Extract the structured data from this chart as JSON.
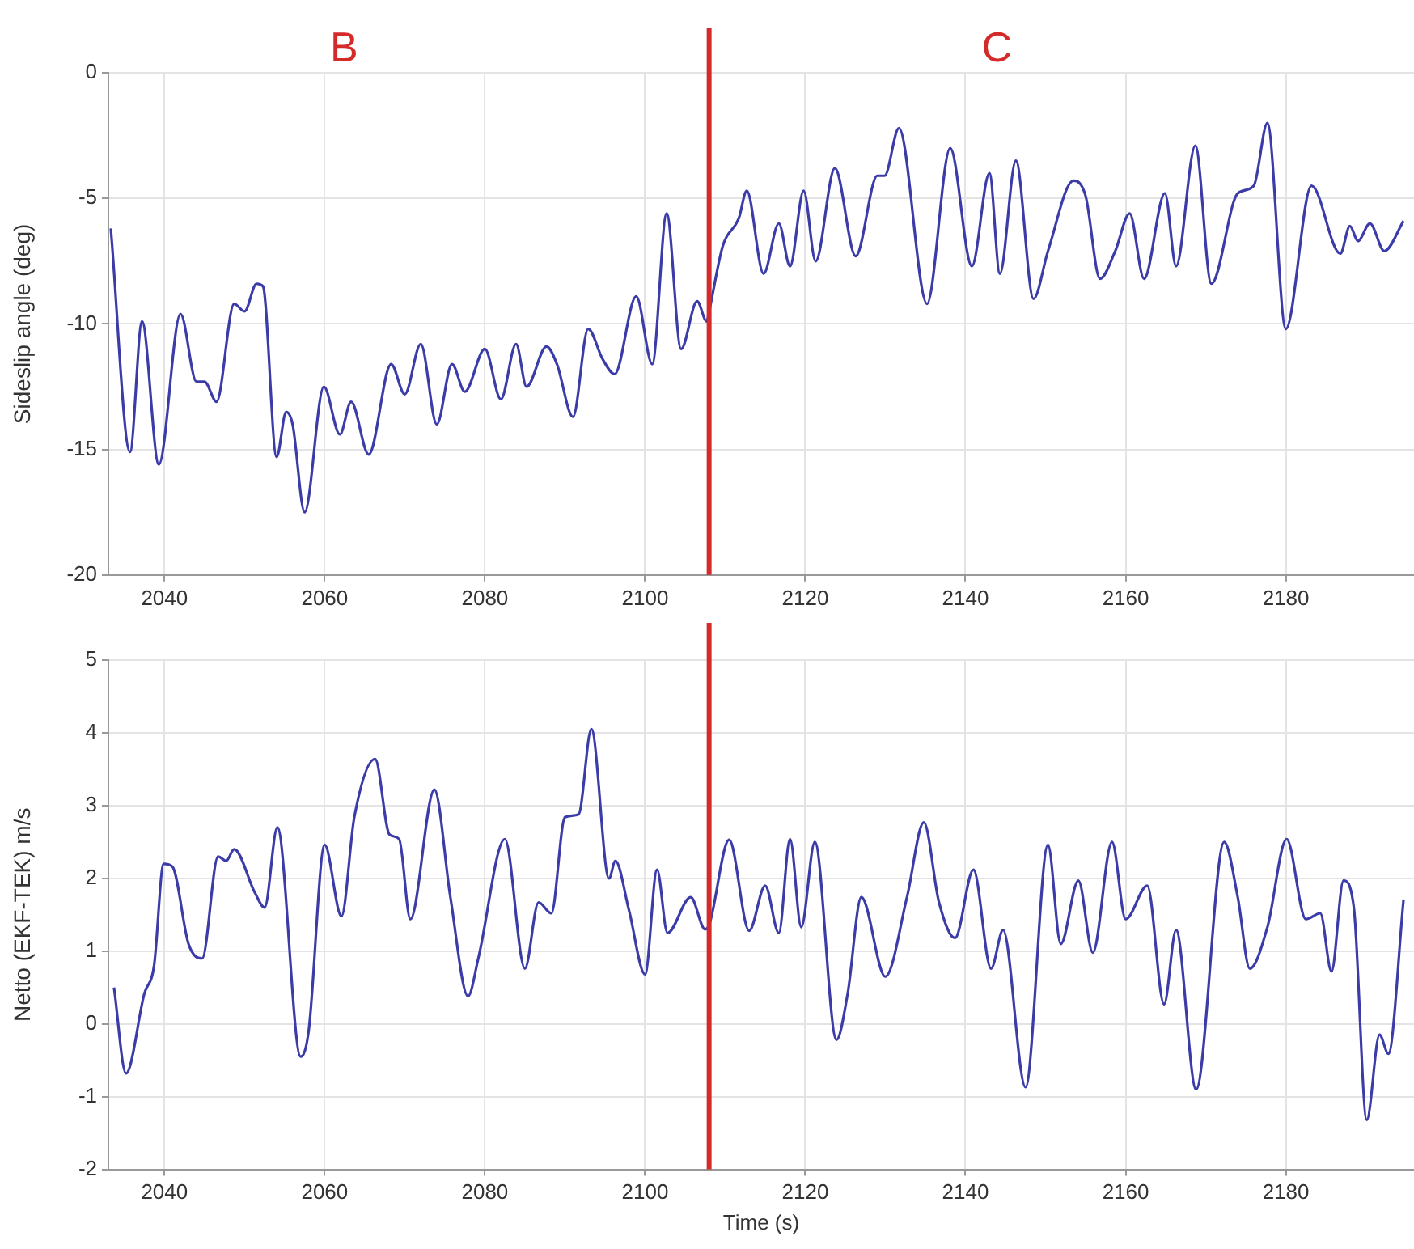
{
  "chart_data": [
    {
      "type": "line",
      "ylabel": "Sideslip angle (deg)",
      "annotations": [
        "B",
        "C"
      ],
      "x": [
        2033.3,
        2035.7,
        2037.2,
        2039.3,
        2042,
        2044,
        2045,
        2046.5,
        2048.7,
        2050,
        2051.5,
        2052.3,
        2054,
        2055.2,
        2056,
        2057.5,
        2059.9,
        2061.9,
        2063.3,
        2065.5,
        2068.3,
        2070,
        2072,
        2074,
        2075.9,
        2077.5,
        2080,
        2082,
        2083.9,
        2085.2,
        2087.7,
        2089,
        2091,
        2092.9,
        2094.7,
        2096.2,
        2098.9,
        2100.9,
        2102.7,
        2104.5,
        2106.5,
        2107.7,
        2108,
        2109.7,
        2111.7,
        2112.7,
        2114.8,
        2116.7,
        2118.1,
        2119.8,
        2121.3,
        2123.7,
        2126.3,
        2129,
        2129.9,
        2131.7,
        2135.2,
        2138.1,
        2140.8,
        2143,
        2144.3,
        2146.3,
        2148.5,
        2150.3,
        2153.5,
        2155,
        2156.8,
        2158.7,
        2160.5,
        2162.3,
        2164.9,
        2166.3,
        2168.7,
        2170.7,
        2174,
        2176,
        2177.7,
        2180,
        2183.2,
        2186.8,
        2188,
        2189,
        2190.5,
        2192.3,
        2194.7
      ],
      "series": [
        {
          "color": "#3c3ca8",
          "values": [
            -6.2,
            -15.1,
            -9.9,
            -15.6,
            -9.6,
            -12.3,
            -12.3,
            -13.1,
            -9.2,
            -9.5,
            -8.4,
            -8.5,
            -15.3,
            -13.5,
            -14,
            -17.5,
            -12.5,
            -14.4,
            -13.1,
            -15.2,
            -11.6,
            -12.8,
            -10.8,
            -14,
            -11.6,
            -12.7,
            -11,
            -13,
            -10.8,
            -12.5,
            -10.9,
            -11.6,
            -13.7,
            -10.2,
            -11.4,
            -12,
            -8.9,
            -11.6,
            -5.6,
            -11,
            -9.1,
            -9.9,
            -9.5,
            -6.9,
            -5.8,
            -4.7,
            -8,
            -6,
            -7.7,
            -4.7,
            -7.5,
            -3.8,
            -7.3,
            -4.1,
            -4.1,
            -2.2,
            -9.2,
            -3,
            -7.7,
            -4,
            -8,
            -3.5,
            -9,
            -7.1,
            -4.3,
            -4.9,
            -8.2,
            -7.1,
            -5.6,
            -8.2,
            -4.8,
            -7.7,
            -2.9,
            -8.4,
            -4.8,
            -4.5,
            -2,
            -10.2,
            -4.5,
            -7.2,
            -6.1,
            -6.7,
            -6,
            -7.1,
            -5.9
          ]
        }
      ],
      "xlim": [
        2033,
        2196
      ],
      "xticks": [
        2040,
        2060,
        2080,
        2100,
        2120,
        2140,
        2160,
        2180
      ],
      "ylim": [
        -20,
        0
      ],
      "yticks": [
        -20,
        -15,
        -10,
        -5,
        0
      ],
      "grid": true,
      "ref_lines": [
        {
          "axis": "x",
          "value": 2108,
          "color": "#d42a2a"
        }
      ]
    },
    {
      "type": "line",
      "xlabel": "Time (s)",
      "ylabel": "Netto (EKF-TEK) m/s",
      "x": [
        2033.7,
        2035.2,
        2037.5,
        2038.7,
        2039.9,
        2041,
        2043,
        2044.7,
        2046.7,
        2047.7,
        2048.7,
        2051.3,
        2052.5,
        2054.1,
        2057,
        2058,
        2060,
        2062.1,
        2063.7,
        2066.3,
        2068.1,
        2069.3,
        2070.7,
        2073.7,
        2075.7,
        2077.9,
        2079.2,
        2082.5,
        2085,
        2086.7,
        2088.3,
        2090,
        2091.7,
        2093.3,
        2095.5,
        2096.3,
        2098,
        2100,
        2101.5,
        2102.8,
        2105.7,
        2107.5,
        2108,
        2110.5,
        2113,
        2115,
        2116.7,
        2118.1,
        2119.5,
        2121.2,
        2123.9,
        2125.3,
        2127,
        2130,
        2132.7,
        2134.8,
        2136.7,
        2138.7,
        2141,
        2143.2,
        2144.7,
        2147.5,
        2150.3,
        2151.9,
        2154.1,
        2155.9,
        2158.3,
        2160,
        2162.7,
        2164.8,
        2166.3,
        2168.8,
        2172.3,
        2174,
        2175.5,
        2177.7,
        2180.1,
        2182.5,
        2184.3,
        2185.7,
        2187.2,
        2188.5,
        2190.1,
        2191.7,
        2192.8,
        2194.7
      ],
      "series": [
        {
          "color": "#3c3ca8",
          "values": [
            0.5,
            -0.68,
            0.42,
            0.8,
            2.2,
            2.16,
            1.1,
            0.9,
            2.3,
            2.24,
            2.4,
            1.8,
            1.6,
            2.7,
            -0.45,
            -0.1,
            2.46,
            1.48,
            2.84,
            3.64,
            2.6,
            2.54,
            1.44,
            3.22,
            1.74,
            0.38,
            0.91,
            2.54,
            0.76,
            1.67,
            1.52,
            2.84,
            2.88,
            4.05,
            2,
            2.24,
            1.56,
            0.68,
            2.12,
            1.25,
            1.74,
            1.3,
            1.36,
            2.53,
            1.28,
            1.9,
            1.25,
            2.54,
            1.33,
            2.5,
            -0.22,
            0.42,
            1.74,
            0.65,
            1.74,
            2.77,
            1.67,
            1.18,
            2.12,
            0.76,
            1.29,
            -0.87,
            2.46,
            1.1,
            1.97,
            0.98,
            2.5,
            1.44,
            1.9,
            0.27,
            1.29,
            -0.9,
            2.5,
            1.74,
            0.76,
            1.33,
            2.54,
            1.44,
            1.52,
            0.72,
            1.97,
            1.59,
            -1.32,
            -0.15,
            -0.41,
            1.71
          ]
        }
      ],
      "xlim": [
        2033,
        2196
      ],
      "xticks": [
        2040,
        2060,
        2080,
        2100,
        2120,
        2140,
        2160,
        2180
      ],
      "ylim": [
        -2,
        5
      ],
      "yticks": [
        -2,
        -1,
        0,
        1,
        2,
        3,
        4,
        5
      ],
      "grid": true,
      "ref_lines": [
        {
          "axis": "x",
          "value": 2108,
          "color": "#d42a2a"
        }
      ]
    }
  ]
}
